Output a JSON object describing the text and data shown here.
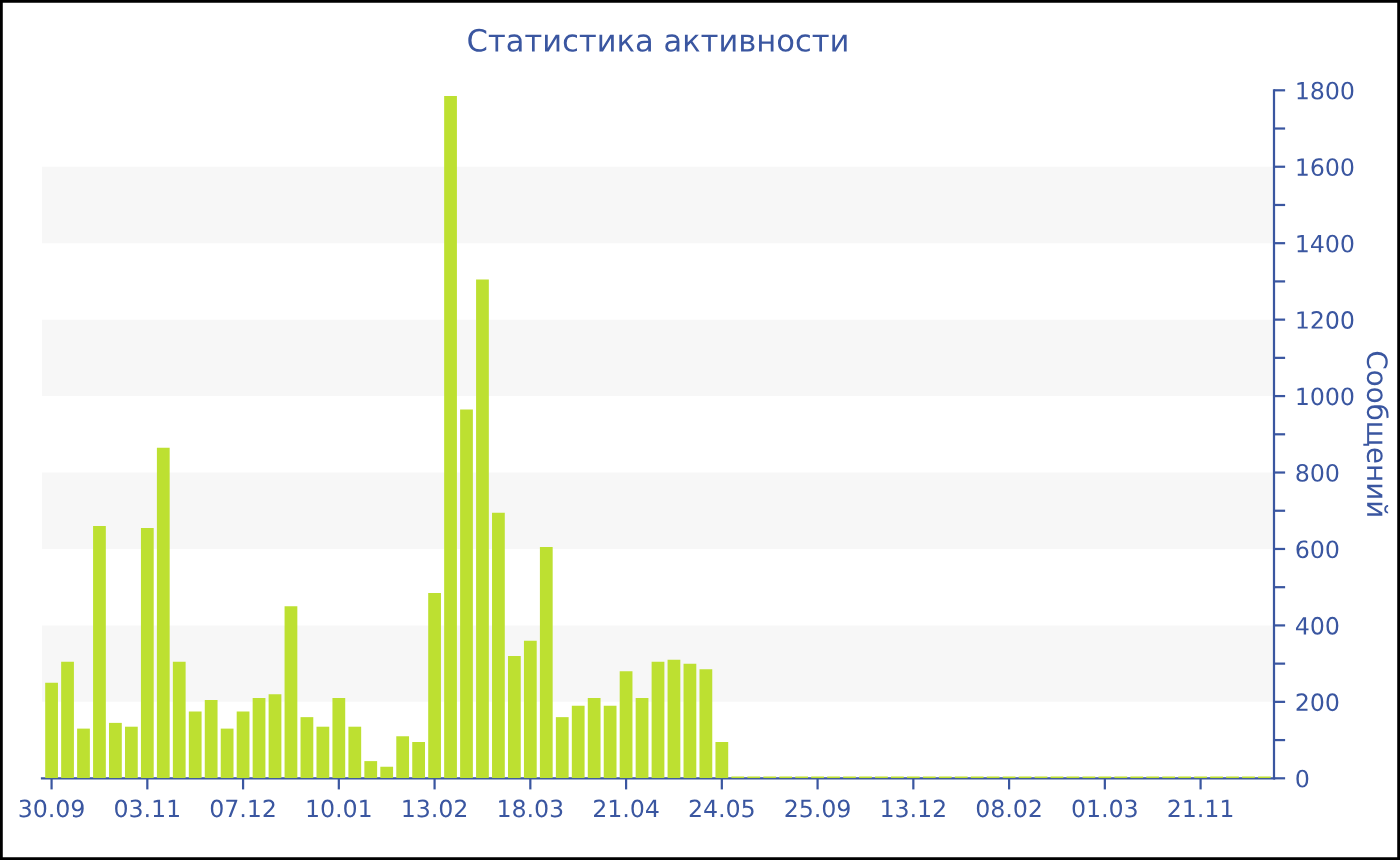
{
  "chart_data": {
    "type": "bar",
    "title": "Статистика активности",
    "ylabel": "Сообщений",
    "categories": [
      "30.09",
      null,
      null,
      null,
      null,
      null,
      "03.11",
      null,
      null,
      null,
      null,
      null,
      "07.12",
      null,
      null,
      null,
      null,
      null,
      "10.01",
      null,
      null,
      null,
      null,
      null,
      "13.02",
      null,
      null,
      null,
      null,
      null,
      "18.03",
      null,
      null,
      null,
      null,
      null,
      "21.04",
      null,
      null,
      null,
      null,
      null,
      "24.05",
      null,
      null,
      null,
      null,
      null,
      "25.09",
      null,
      null,
      null,
      null,
      null,
      "13.12",
      null,
      null,
      null,
      null,
      null,
      "08.02",
      null,
      null,
      null,
      null,
      null,
      "01.03",
      null,
      null,
      null,
      null,
      null,
      "21.11",
      null,
      null,
      null,
      null
    ],
    "values": [
      250,
      305,
      130,
      660,
      145,
      135,
      655,
      865,
      305,
      175,
      205,
      130,
      175,
      210,
      220,
      450,
      160,
      135,
      210,
      135,
      45,
      30,
      110,
      95,
      485,
      1785,
      965,
      1305,
      695,
      320,
      360,
      605,
      160,
      190,
      210,
      190,
      280,
      210,
      305,
      310,
      300,
      285,
      95,
      5,
      5,
      5,
      5,
      5,
      5,
      5,
      5,
      5,
      5,
      5,
      5,
      5,
      5,
      5,
      5,
      5,
      5,
      5,
      5,
      5,
      5,
      5,
      5,
      5,
      5,
      5,
      5,
      5,
      5,
      5,
      5,
      5,
      5
    ],
    "color": "#bde031",
    "ylim": [
      0,
      1800
    ],
    "yticks": [
      0,
      {
        "value": 100,
        "label": null
      },
      200,
      {
        "value": 300,
        "label": null
      },
      400,
      {
        "value": 500,
        "label": null
      },
      600,
      {
        "value": 700,
        "label": null
      },
      800,
      {
        "value": 900,
        "label": null
      },
      1000,
      {
        "value": 1100,
        "label": null
      },
      1200,
      {
        "value": 1300,
        "label": null
      },
      1400,
      {
        "value": 1500,
        "label": null
      },
      1600,
      {
        "value": 1700,
        "label": null
      },
      1800
    ],
    "bands": [
      {
        "axis": "y",
        "from": 200,
        "to": 400,
        "color": "#f7f7f7"
      },
      {
        "axis": "y",
        "from": 600,
        "to": 800,
        "color": "#f7f7f7"
      },
      {
        "axis": "y",
        "from": 1000,
        "to": 1200,
        "color": "#f7f7f7"
      },
      {
        "axis": "y",
        "from": 1400,
        "to": 1600,
        "color": "#f7f7f7"
      }
    ],
    "grid": false,
    "legend": false
  }
}
